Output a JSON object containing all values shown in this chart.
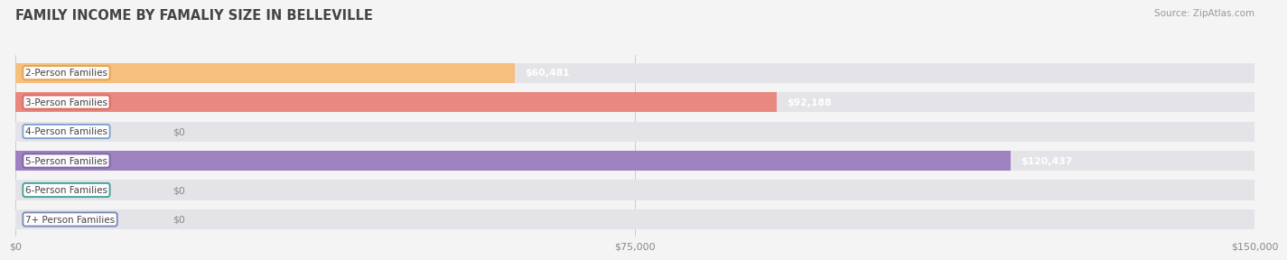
{
  "title": "FAMILY INCOME BY FAMALIY SIZE IN BELLEVILLE",
  "source": "Source: ZipAtlas.com",
  "categories": [
    "2-Person Families",
    "3-Person Families",
    "4-Person Families",
    "5-Person Families",
    "6-Person Families",
    "7+ Person Families"
  ],
  "values": [
    60481,
    92188,
    0,
    120437,
    0,
    0
  ],
  "bar_colors": [
    "#f5bf7e",
    "#e88880",
    "#a8c4e0",
    "#9e82c0",
    "#6dc0b8",
    "#a8b4d8"
  ],
  "label_border_colors": [
    "#e8a050",
    "#d86860",
    "#80a0d0",
    "#8060a8",
    "#40a098",
    "#7888b8"
  ],
  "value_labels": [
    "$60,481",
    "$92,188",
    "$0",
    "$120,437",
    "$0",
    "$0"
  ],
  "xlim": [
    0,
    150000
  ],
  "xticks": [
    0,
    75000,
    150000
  ],
  "xtick_labels": [
    "$0",
    "$75,000",
    "$150,000"
  ],
  "bg_color": "#f4f4f4",
  "bar_bg_color": "#e4e4e8",
  "title_fontsize": 10.5,
  "source_fontsize": 7.5,
  "label_fontsize": 7.5,
  "value_fontsize": 7.8
}
